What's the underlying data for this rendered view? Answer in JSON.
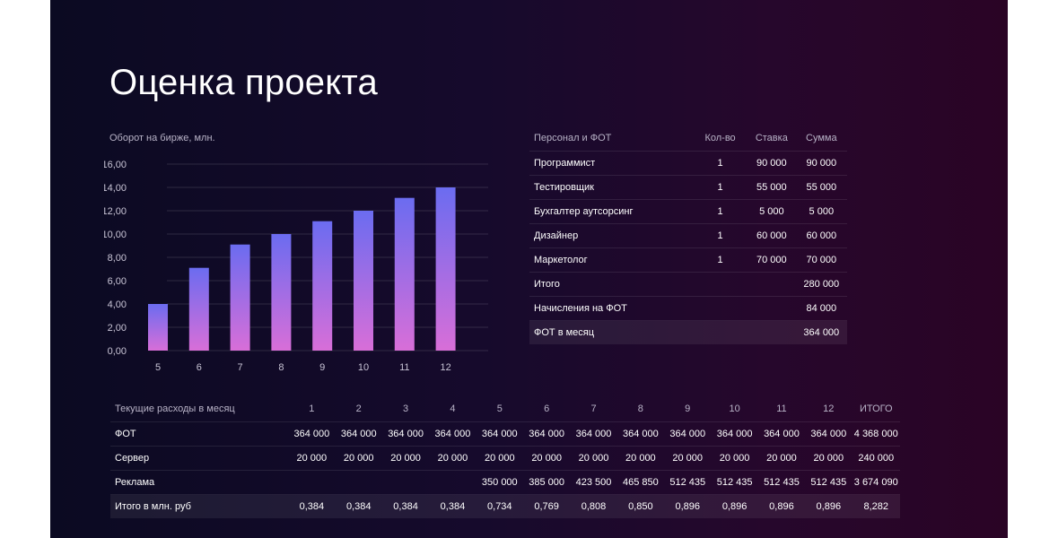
{
  "title": "Оценка проекта",
  "chart_data": {
    "type": "bar",
    "title": "Оборот на бирже, млн.",
    "categories": [
      "5",
      "6",
      "7",
      "8",
      "9",
      "10",
      "11",
      "12"
    ],
    "values": [
      4.0,
      7.1,
      9.1,
      10.0,
      11.1,
      12.0,
      13.1,
      14.0
    ],
    "ylim": [
      0,
      16
    ],
    "yticks": [
      "0,00",
      "2,00",
      "4,00",
      "6,00",
      "8,00",
      "10,00",
      "12,00",
      "14,00",
      "16,00"
    ],
    "grid": true,
    "colors": {
      "bar_top": "#6b6cf0",
      "bar_bottom": "#d86ed8"
    }
  },
  "staff_table": {
    "headers": [
      "Персонал и ФОТ",
      "Кол-во",
      "Ставка",
      "Сумма"
    ],
    "rows": [
      [
        "Программист",
        "1",
        "90 000",
        "90 000"
      ],
      [
        "Тестировщик",
        "1",
        "55 000",
        "55 000"
      ],
      [
        "Бухгалтер аутсорсинг",
        "1",
        "5 000",
        "5 000"
      ],
      [
        "Дизайнер",
        "1",
        "60 000",
        "60 000"
      ],
      [
        "Маркетолог",
        "1",
        "70 000",
        "70 000"
      ],
      [
        "Итого",
        "",
        "",
        "280 000"
      ],
      [
        "Начисления на ФОТ",
        "",
        "",
        "84 000"
      ],
      [
        "ФОТ в месяц",
        "",
        "",
        "364 000"
      ]
    ]
  },
  "costs_table": {
    "headers": [
      "Текущие расходы в месяц",
      "1",
      "2",
      "3",
      "4",
      "5",
      "6",
      "7",
      "8",
      "9",
      "10",
      "11",
      "12",
      "ИТОГО"
    ],
    "rows": [
      [
        "ФОТ",
        "364 000",
        "364 000",
        "364 000",
        "364 000",
        "364 000",
        "364 000",
        "364 000",
        "364 000",
        "364 000",
        "364 000",
        "364 000",
        "364 000",
        "4 368 000"
      ],
      [
        "Сервер",
        "20 000",
        "20 000",
        "20 000",
        "20 000",
        "20 000",
        "20 000",
        "20 000",
        "20 000",
        "20 000",
        "20 000",
        "20 000",
        "20 000",
        "240 000"
      ],
      [
        "Реклама",
        "",
        "",
        "",
        "",
        "350 000",
        "385 000",
        "423 500",
        "465 850",
        "512 435",
        "512 435",
        "512 435",
        "512 435",
        "3 674 090"
      ],
      [
        "Итого в млн. руб",
        "0,384",
        "0,384",
        "0,384",
        "0,384",
        "0,734",
        "0,769",
        "0,808",
        "0,850",
        "0,896",
        "0,896",
        "0,896",
        "0,896",
        "8,282"
      ]
    ]
  }
}
